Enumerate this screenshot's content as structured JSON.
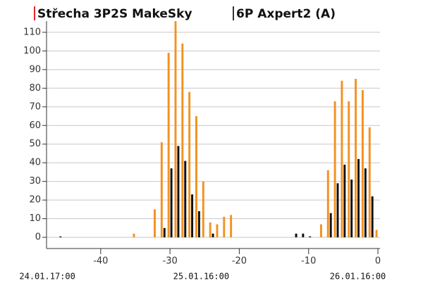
{
  "chart_data": {
    "type": "bar",
    "x": [
      -46,
      -45,
      -44,
      -43,
      -42,
      -41,
      -40,
      -39,
      -38,
      -37,
      -36,
      -35,
      -34,
      -33,
      -32,
      -31,
      -30,
      -29,
      -28,
      -27,
      -26,
      -25,
      -24,
      -23,
      -22,
      -21,
      -20,
      -19,
      -18,
      -17,
      -16,
      -15,
      -14,
      -13,
      -12,
      -11,
      -10,
      -9,
      -8,
      -7,
      -6,
      -5,
      -4,
      -3,
      -2,
      -1,
      0
    ],
    "series": [
      {
        "name": "Střecha 3P2S MakeSky",
        "color": "#f39222",
        "marker_color": "#e0262b",
        "values": [
          null,
          null,
          null,
          null,
          null,
          null,
          null,
          null,
          null,
          null,
          null,
          2,
          null,
          null,
          15,
          51,
          99,
          116,
          104,
          78,
          65,
          30,
          8,
          7,
          11,
          12,
          null,
          null,
          null,
          null,
          null,
          null,
          null,
          null,
          null,
          null,
          null,
          null,
          7,
          36,
          73,
          84,
          73,
          85,
          79,
          59,
          4
        ]
      },
      {
        "name": "6P Axpert2 (A)",
        "color": "#111111",
        "marker_color": "#333333",
        "values": [
          0.5,
          null,
          null,
          null,
          null,
          null,
          null,
          null,
          null,
          null,
          null,
          null,
          null,
          null,
          null,
          5,
          37,
          49,
          41,
          23,
          14,
          null,
          2,
          null,
          null,
          null,
          null,
          null,
          null,
          null,
          null,
          null,
          null,
          null,
          2,
          2,
          0.5,
          null,
          null,
          13,
          29,
          39,
          31,
          42,
          37,
          22,
          null
        ]
      }
    ],
    "xlim": [
      -47,
      0.3
    ],
    "xticks": [
      -40,
      -30,
      -20,
      -10,
      0
    ],
    "ylim": [
      -6,
      116
    ],
    "yticks": [
      0,
      10,
      20,
      30,
      40,
      50,
      60,
      70,
      80,
      90,
      100,
      110
    ],
    "grid": true,
    "date_labels": [
      {
        "value": -47.7,
        "label": "24.01.17:00"
      },
      {
        "value": -25.5,
        "label": "25.01.16:00"
      },
      {
        "value": -2.9,
        "label": "26.01.16:00"
      }
    ]
  }
}
